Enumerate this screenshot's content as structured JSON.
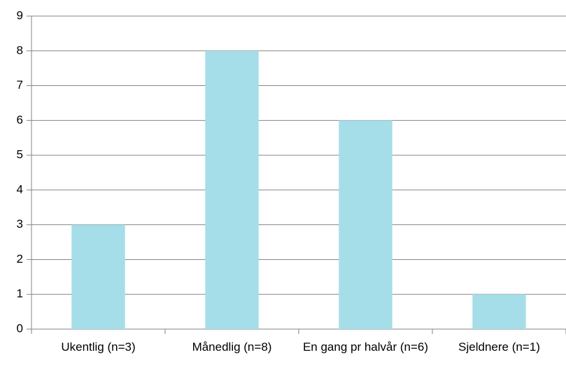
{
  "chart_data": {
    "type": "bar",
    "categories": [
      "Ukentlig (n=3)",
      "Månedlig (n=8)",
      "En gang pr halvår (n=6)",
      "Sjeldnere (n=1)"
    ],
    "values": [
      3,
      8,
      6,
      1
    ],
    "color": "#a5dee8",
    "ylim": [
      0,
      9
    ],
    "yticks": [
      0,
      1,
      2,
      3,
      4,
      5,
      6,
      7,
      8,
      9
    ],
    "grid": true
  }
}
